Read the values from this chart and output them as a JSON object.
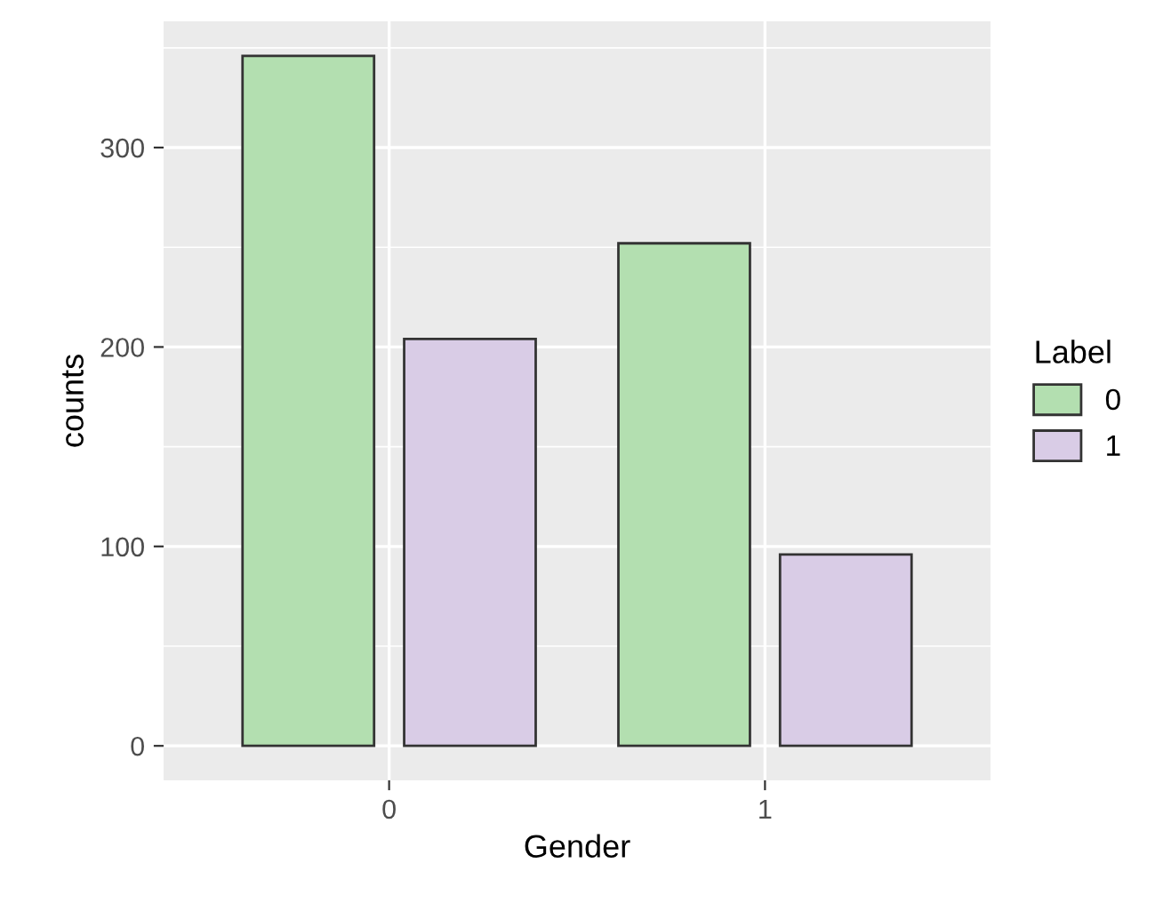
{
  "chart_data": {
    "type": "bar",
    "xlabel": "Gender",
    "ylabel": "counts",
    "legend_title": "Label",
    "categories": [
      "0",
      "1"
    ],
    "series": [
      {
        "name": "0",
        "color": "#b3dfb0",
        "values": [
          346,
          252
        ]
      },
      {
        "name": "1",
        "color": "#d9cce6",
        "values": [
          204,
          96
        ]
      }
    ],
    "ylim": [
      -17.3,
      363.3
    ],
    "yticks": [
      0,
      100,
      200,
      300
    ],
    "grid": true,
    "legend": "right"
  }
}
